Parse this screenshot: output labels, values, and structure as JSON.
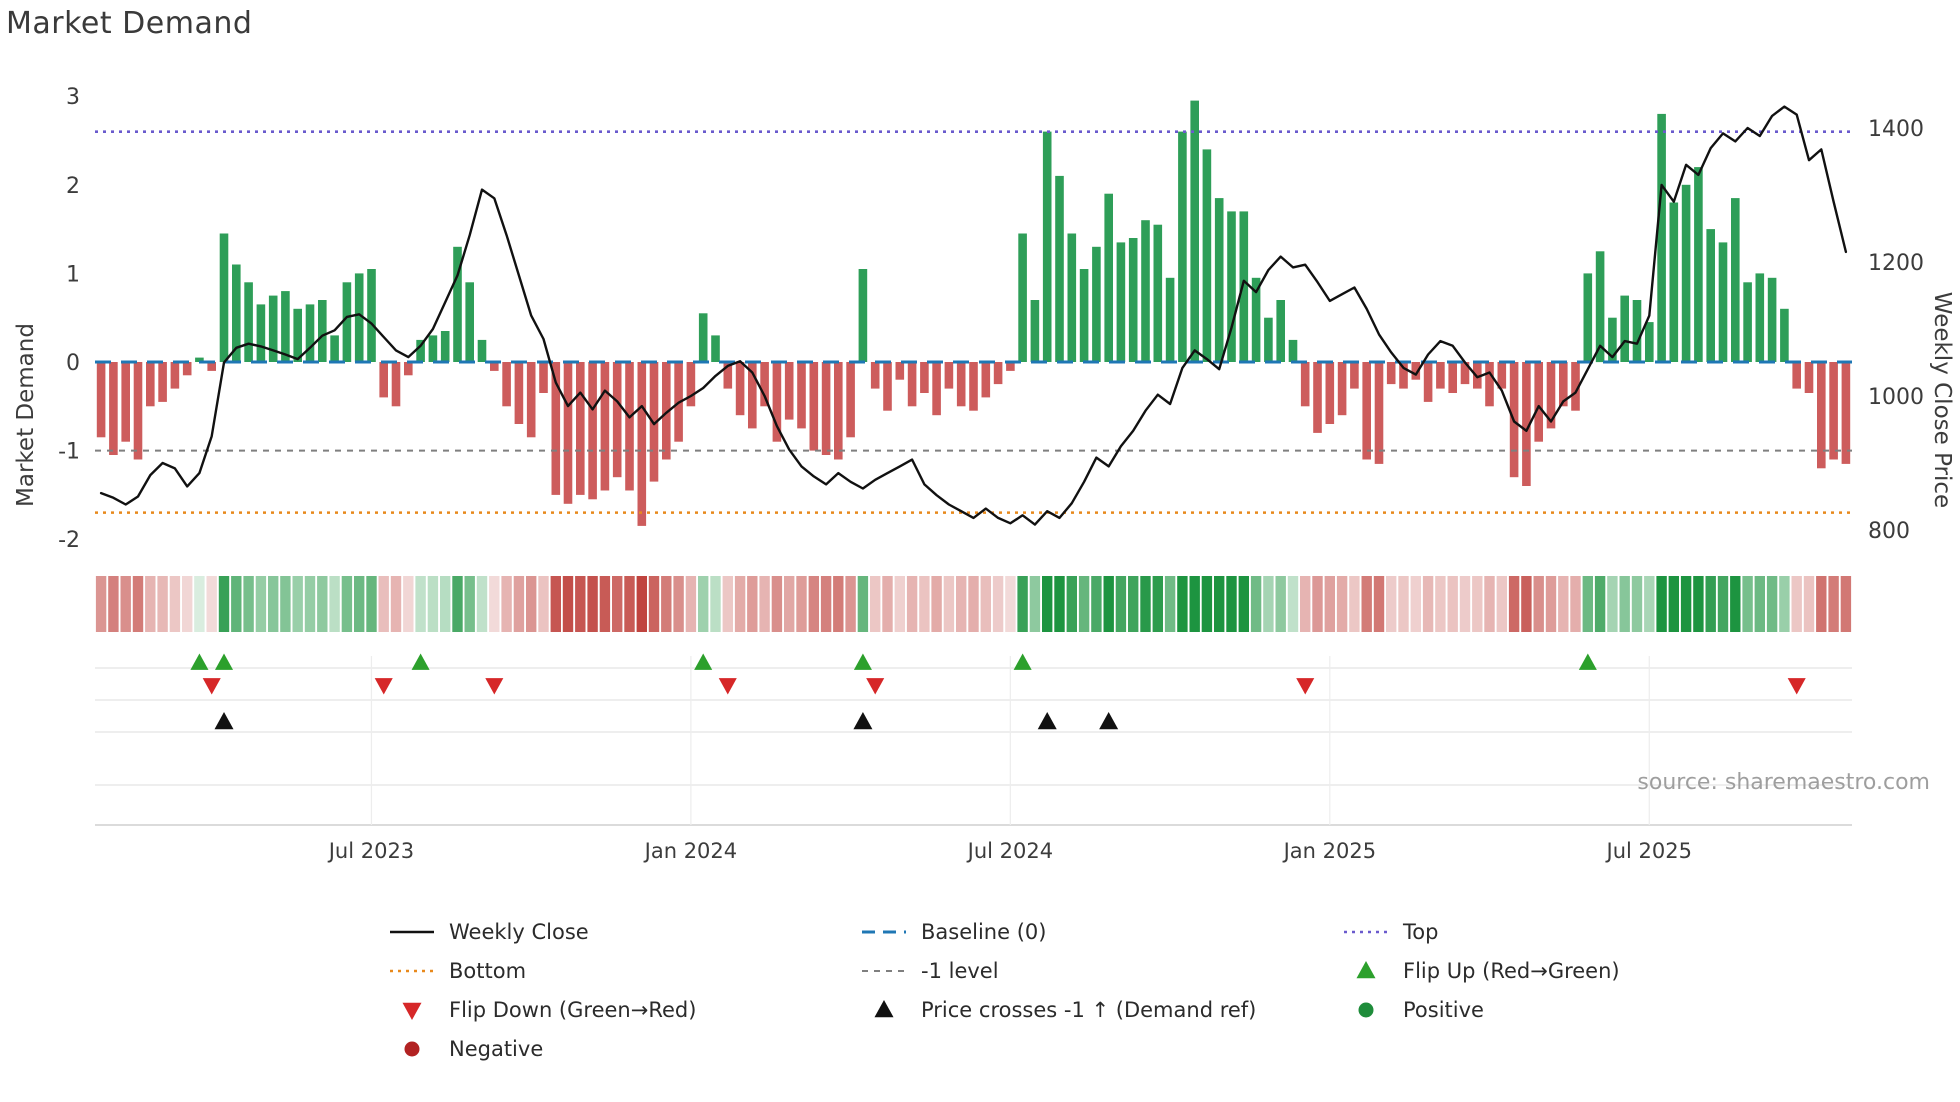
{
  "title": "Market Demand",
  "source": "source: sharemaestro.com",
  "axes": {
    "left_label": "Market Demand",
    "right_label": "Weekly Close Price"
  },
  "colors": {
    "positive_bar": "#2e9e58",
    "negative_bar": "#cd5c5c",
    "price_line": "#111111",
    "baseline": "#1f77b4",
    "top_line": "#6a5acd",
    "bottom_line": "#e8891c",
    "minus_one_line": "#7f7f7f",
    "flip_up": "#2ca02c",
    "flip_down": "#d62728",
    "price_cross": "#111111",
    "positive_dot": "#1e8c3a",
    "negative_dot": "#b22222",
    "heatmap_positive": "29,148,64",
    "heatmap_negative": "192,68,63"
  },
  "chart_data": {
    "type": "bar",
    "title": "Market Demand",
    "x_unit": "week",
    "start_date": "2023-02-06",
    "freq": "weekly",
    "left_axis": {
      "label": "Market Demand",
      "ticks": [
        3,
        2,
        1,
        0,
        -1,
        -2
      ],
      "range": [
        -2.3,
        3.2
      ]
    },
    "right_axis": {
      "label": "Weekly Close Price",
      "ticks": [
        1400,
        1200,
        1000,
        800
      ],
      "range": [
        790,
        1460
      ]
    },
    "x_ticks": [
      {
        "week": 22,
        "label": "Jul 2023"
      },
      {
        "week": 48,
        "label": "Jan 2024"
      },
      {
        "week": 74,
        "label": "Jul 2024"
      },
      {
        "week": 100,
        "label": "Jan 2025"
      },
      {
        "week": 126,
        "label": "Jul 2025"
      }
    ],
    "reference_lines": {
      "baseline": 0,
      "top": 2.6,
      "bottom": -1.7,
      "minus_one": -1
    },
    "series": [
      {
        "name": "Market Demand",
        "kind": "bar",
        "values": [
          -0.85,
          -1.05,
          -0.9,
          -1.1,
          -0.5,
          -0.45,
          -0.3,
          -0.15,
          0.05,
          -0.1,
          1.45,
          1.1,
          0.9,
          0.65,
          0.75,
          0.8,
          0.6,
          0.65,
          0.7,
          0.3,
          0.9,
          1.0,
          1.05,
          -0.4,
          -0.5,
          -0.15,
          0.25,
          0.3,
          0.35,
          1.3,
          0.9,
          0.25,
          -0.1,
          -0.5,
          -0.7,
          -0.85,
          -0.35,
          -1.5,
          -1.6,
          -1.5,
          -1.55,
          -1.45,
          -1.3,
          -1.45,
          -1.85,
          -1.35,
          -1.1,
          -0.9,
          -0.5,
          0.55,
          0.3,
          -0.3,
          -0.6,
          -0.75,
          -0.5,
          -0.9,
          -0.65,
          -0.75,
          -1.0,
          -1.05,
          -1.1,
          -0.85,
          1.05,
          -0.3,
          -0.55,
          -0.2,
          -0.5,
          -0.35,
          -0.6,
          -0.3,
          -0.5,
          -0.55,
          -0.4,
          -0.25,
          -0.1,
          1.45,
          0.7,
          2.6,
          2.1,
          1.45,
          1.05,
          1.3,
          1.9,
          1.35,
          1.4,
          1.6,
          1.55,
          0.95,
          2.6,
          2.95,
          2.4,
          1.85,
          1.7,
          1.7,
          0.95,
          0.5,
          0.7,
          0.25,
          -0.5,
          -0.8,
          -0.7,
          -0.6,
          -0.3,
          -1.1,
          -1.15,
          -0.25,
          -0.3,
          -0.2,
          -0.45,
          -0.3,
          -0.35,
          -0.25,
          -0.3,
          -0.5,
          -0.3,
          -1.3,
          -1.4,
          -0.9,
          -0.75,
          -0.5,
          -0.55,
          1.0,
          1.25,
          0.5,
          0.75,
          0.7,
          0.45,
          2.8,
          1.8,
          2.0,
          2.2,
          1.5,
          1.35,
          1.85,
          0.9,
          1.0,
          0.95,
          0.6,
          -0.3,
          -0.35,
          -1.2,
          -1.1,
          -1.15
        ]
      },
      {
        "name": "Weekly Close",
        "kind": "line",
        "values": [
          855,
          848,
          838,
          850,
          882,
          900,
          892,
          865,
          885,
          940,
          1050,
          1072,
          1078,
          1074,
          1068,
          1062,
          1055,
          1072,
          1090,
          1098,
          1118,
          1122,
          1108,
          1088,
          1068,
          1058,
          1075,
          1100,
          1140,
          1180,
          1240,
          1308,
          1295,
          1240,
          1180,
          1120,
          1085,
          1020,
          985,
          1005,
          980,
          1008,
          992,
          968,
          985,
          958,
          975,
          990,
          1000,
          1012,
          1030,
          1045,
          1052,
          1035,
          1000,
          955,
          920,
          895,
          880,
          868,
          885,
          872,
          862,
          875,
          885,
          895,
          905,
          868,
          852,
          838,
          828,
          818,
          832,
          818,
          810,
          822,
          808,
          828,
          818,
          840,
          872,
          908,
          895,
          925,
          948,
          978,
          1002,
          988,
          1042,
          1068,
          1055,
          1040,
          1102,
          1172,
          1155,
          1188,
          1208,
          1192,
          1196,
          1170,
          1142,
          1152,
          1162,
          1130,
          1092,
          1065,
          1042,
          1032,
          1062,
          1082,
          1075,
          1050,
          1028,
          1035,
          1008,
          962,
          948,
          985,
          962,
          992,
          1005,
          1040,
          1075,
          1058,
          1082,
          1078,
          1120,
          1315,
          1290,
          1345,
          1330,
          1370,
          1392,
          1380,
          1400,
          1388,
          1418,
          1432,
          1420,
          1352,
          1368,
          1290,
          1215
        ]
      }
    ],
    "markers": {
      "flip_up_weeks": [
        8,
        10,
        26,
        49,
        62,
        75,
        121
      ],
      "flip_down_weeks": [
        9,
        23,
        32,
        51,
        63,
        98,
        138
      ],
      "price_cross_up_weeks": [
        10,
        62,
        77,
        82
      ]
    },
    "heatmap": {
      "description": "weekly demand sign/intensity strip",
      "derived_from": "Market Demand series"
    }
  },
  "legend": {
    "items": [
      {
        "label": "Weekly Close",
        "marker": "line",
        "color": "#111111"
      },
      {
        "label": "Baseline (0)",
        "marker": "dash-long",
        "color": "#1f77b4"
      },
      {
        "label": "Top",
        "marker": "dot",
        "color": "#6a5acd"
      },
      {
        "label": "Bottom",
        "marker": "dot",
        "color": "#e8891c"
      },
      {
        "label": "-1 level",
        "marker": "dash",
        "color": "#7f7f7f"
      },
      {
        "label": "Flip Up (Red→Green)",
        "marker": "tri-up",
        "color": "#2ca02c"
      },
      {
        "label": "Flip Down (Green→Red)",
        "marker": "tri-down",
        "color": "#d62728"
      },
      {
        "label": "Price crosses -1 ↑ (Demand ref)",
        "marker": "tri-up",
        "color": "#111111"
      },
      {
        "label": "Positive",
        "marker": "circle",
        "color": "#1e8c3a"
      },
      {
        "label": "Negative",
        "marker": "circle",
        "color": "#b22222"
      }
    ]
  }
}
